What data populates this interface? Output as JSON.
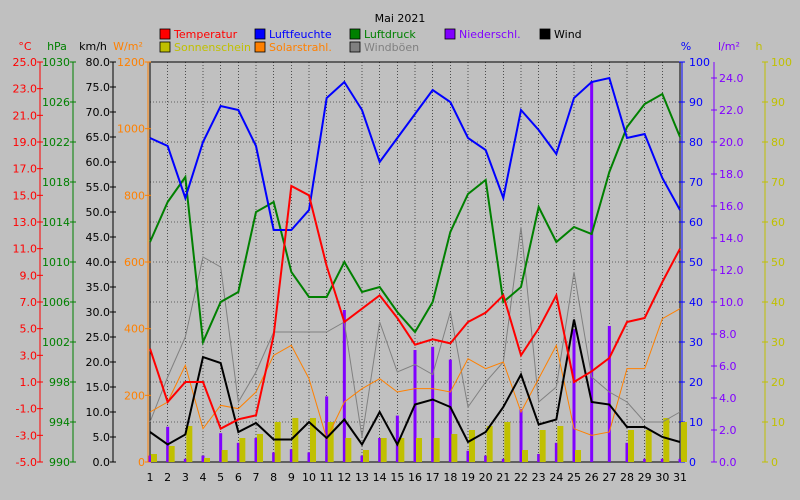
{
  "chart_data": {
    "type": "line",
    "title": "Mai 2021",
    "x": [
      1,
      2,
      3,
      4,
      5,
      6,
      7,
      8,
      9,
      10,
      11,
      12,
      13,
      14,
      15,
      16,
      17,
      18,
      19,
      20,
      21,
      22,
      23,
      24,
      25,
      26,
      27,
      28,
      29,
      30,
      31
    ],
    "axes": [
      {
        "id": "temp",
        "unit": "°C",
        "side": "left",
        "color": "#ff0000",
        "min": -5,
        "max": 25,
        "ticks": [
          25.0,
          23.0,
          21.0,
          19.0,
          17.0,
          15.0,
          13.0,
          11.0,
          9.0,
          7.0,
          5.0,
          3.0,
          1.0,
          -1.0,
          -3.0,
          -5.0
        ],
        "labels": [
          "25.0",
          "23.0",
          "21.0",
          "19.0",
          "17.0",
          "15.0",
          "13.0",
          "11.0",
          "9.0",
          "7.0",
          "5.0",
          "3.0",
          "1.0",
          "-1.0",
          "-3.0",
          "-5.0"
        ]
      },
      {
        "id": "press",
        "unit": "hPa",
        "side": "left",
        "color": "#008000",
        "min": 990,
        "max": 1030,
        "ticks": [
          1030,
          1026,
          1022,
          1018,
          1014,
          1010,
          1006,
          1002,
          998,
          994,
          990
        ],
        "labels": [
          "1030",
          "1026",
          "1022",
          "1018",
          "1014",
          "1010",
          "1006",
          "1002",
          "998",
          "994",
          "990"
        ]
      },
      {
        "id": "wind",
        "unit": "km/h",
        "side": "left",
        "color": "#000000",
        "min": 0,
        "max": 80,
        "ticks": [
          80,
          75,
          70,
          65,
          60,
          55,
          50,
          45,
          40,
          35,
          30,
          25,
          20,
          15,
          10,
          5,
          0
        ],
        "labels": [
          "80.0",
          "75.0",
          "70.0",
          "65.0",
          "60.0",
          "55.0",
          "50.0",
          "45.0",
          "40.0",
          "35.0",
          "30.0",
          "25.0",
          "20.0",
          "15.0",
          "10.0",
          "5.0",
          "0.0"
        ]
      },
      {
        "id": "solar",
        "unit": "W/m²",
        "side": "left",
        "color": "#ff8000",
        "min": 0,
        "max": 1200,
        "ticks": [
          1200,
          1000,
          800,
          600,
          400,
          200,
          0
        ],
        "labels": [
          "1200",
          "1000",
          "800",
          "600",
          "400",
          "200",
          "0"
        ]
      },
      {
        "id": "hum",
        "unit": "%",
        "side": "right",
        "color": "#0000ff",
        "min": 0,
        "max": 100,
        "ticks": [
          100,
          90,
          80,
          70,
          60,
          50,
          40,
          30,
          20,
          10,
          0
        ],
        "labels": [
          "100",
          "90",
          "80",
          "70",
          "60",
          "50",
          "40",
          "30",
          "20",
          "10",
          "0"
        ]
      },
      {
        "id": "rain",
        "unit": "l/m²",
        "side": "right",
        "color": "#8000ff",
        "min": 0,
        "max": 25,
        "ticks": [
          24,
          22,
          20,
          18,
          16,
          14,
          12,
          10,
          8,
          6,
          4,
          2,
          0
        ],
        "labels": [
          "24.0",
          "22.0",
          "20.0",
          "18.0",
          "16.0",
          "14.0",
          "12.0",
          "10.0",
          "8.0",
          "6.0",
          "4.0",
          "2.0",
          "0.0"
        ]
      },
      {
        "id": "sun",
        "unit": "h",
        "side": "right",
        "color": "#c0c000",
        "min": 0,
        "max": 100,
        "ticks": [
          100,
          90,
          80,
          70,
          60,
          50,
          40,
          30,
          20,
          10,
          0
        ],
        "labels": [
          "100",
          "90",
          "80",
          "70",
          "60",
          "50",
          "40",
          "30",
          "20",
          "10",
          "0"
        ]
      }
    ],
    "series": [
      {
        "name": "Temperatur",
        "axis": "temp",
        "kind": "line",
        "color": "#ff0000",
        "values": [
          3.5,
          -0.5,
          1.0,
          1.0,
          -2.5,
          -1.8,
          -1.5,
          4.5,
          15.7,
          15.0,
          9.7,
          5.5,
          6.5,
          7.5,
          5.8,
          3.8,
          4.2,
          3.9,
          5.5,
          6.2,
          7.5,
          3.0,
          5.0,
          7.5,
          1.0,
          1.8,
          2.8,
          5.5,
          5.8,
          8.5,
          11.0
        ]
      },
      {
        "name": "Luftfeuchte",
        "axis": "hum",
        "kind": "line",
        "color": "#0000ff",
        "values": [
          81,
          79,
          66,
          80,
          89,
          88,
          79,
          58,
          58,
          63,
          91,
          95,
          88,
          75,
          81,
          87,
          93,
          90,
          81,
          78,
          66,
          88,
          83,
          77,
          91,
          95,
          96,
          81,
          82,
          71,
          63
        ]
      },
      {
        "name": "Luftdruck",
        "axis": "press",
        "kind": "line",
        "color": "#008000",
        "values": [
          1012,
          1016,
          1018.5,
          1002,
          1006,
          1007,
          1015,
          1016,
          1009,
          1006.5,
          1006.5,
          1010,
          1007,
          1007.5,
          1005,
          1003,
          1006,
          1013,
          1016.8,
          1018.2,
          1006,
          1007.5,
          1015.5,
          1012.0,
          1013.5,
          1012.8,
          1019,
          1023.5,
          1025.8,
          1026.8,
          1022.5
        ]
      },
      {
        "name": "Wind",
        "axis": "wind",
        "kind": "line",
        "color": "#000000",
        "values": [
          6,
          3.5,
          5.5,
          21,
          19.8,
          6,
          7.8,
          4.5,
          4.5,
          8,
          4.8,
          8.5,
          3.5,
          10,
          3.5,
          11.5,
          12.5,
          11,
          4,
          6,
          11,
          17.5,
          7.5,
          8.5,
          28.5,
          12,
          11.5,
          7,
          7,
          5,
          4
        ]
      },
      {
        "name": "Windböen",
        "axis": "wind",
        "kind": "line",
        "color": "#808080",
        "values": [
          8,
          17,
          25,
          41,
          39,
          12,
          18,
          26,
          26,
          26,
          26,
          28,
          5,
          28,
          18,
          19.5,
          17.5,
          30,
          11,
          16,
          20,
          47,
          12,
          15,
          38,
          17,
          14,
          12,
          8,
          8,
          10
        ]
      },
      {
        "name": "Solarstrahl.",
        "axis": "solar",
        "kind": "line",
        "color": "#ff8000",
        "values": [
          150,
          180,
          290,
          100,
          170,
          160,
          210,
          320,
          350,
          250,
          70,
          180,
          220,
          250,
          210,
          220,
          220,
          210,
          310,
          280,
          300,
          150,
          250,
          350,
          100,
          80,
          90,
          280,
          280,
          430,
          460
        ]
      },
      {
        "name": "Niederschl.",
        "axis": "rain",
        "kind": "bar",
        "color": "#8000ff",
        "values": [
          0.4,
          2.2,
          0.2,
          0.4,
          1.8,
          1.2,
          1.5,
          0.6,
          0.8,
          0.6,
          4.1,
          9.5,
          0.4,
          1.5,
          2.9,
          7.0,
          7.2,
          6.4,
          0.7,
          0.4,
          0.2,
          3.3,
          0.5,
          1.2,
          8.3,
          23.8,
          8.5,
          1.2,
          0.2,
          0.2,
          0.2
        ]
      },
      {
        "name": "Sonnenschein",
        "axis": "sun",
        "kind": "bar",
        "color": "#c0c000",
        "values": [
          2,
          4,
          9,
          1,
          3,
          6,
          7,
          10,
          11,
          11,
          10,
          6,
          3,
          6,
          6,
          6,
          6,
          7,
          8,
          9,
          10,
          3,
          8,
          9,
          3,
          0,
          0,
          8,
          8,
          11,
          10
        ]
      }
    ]
  }
}
